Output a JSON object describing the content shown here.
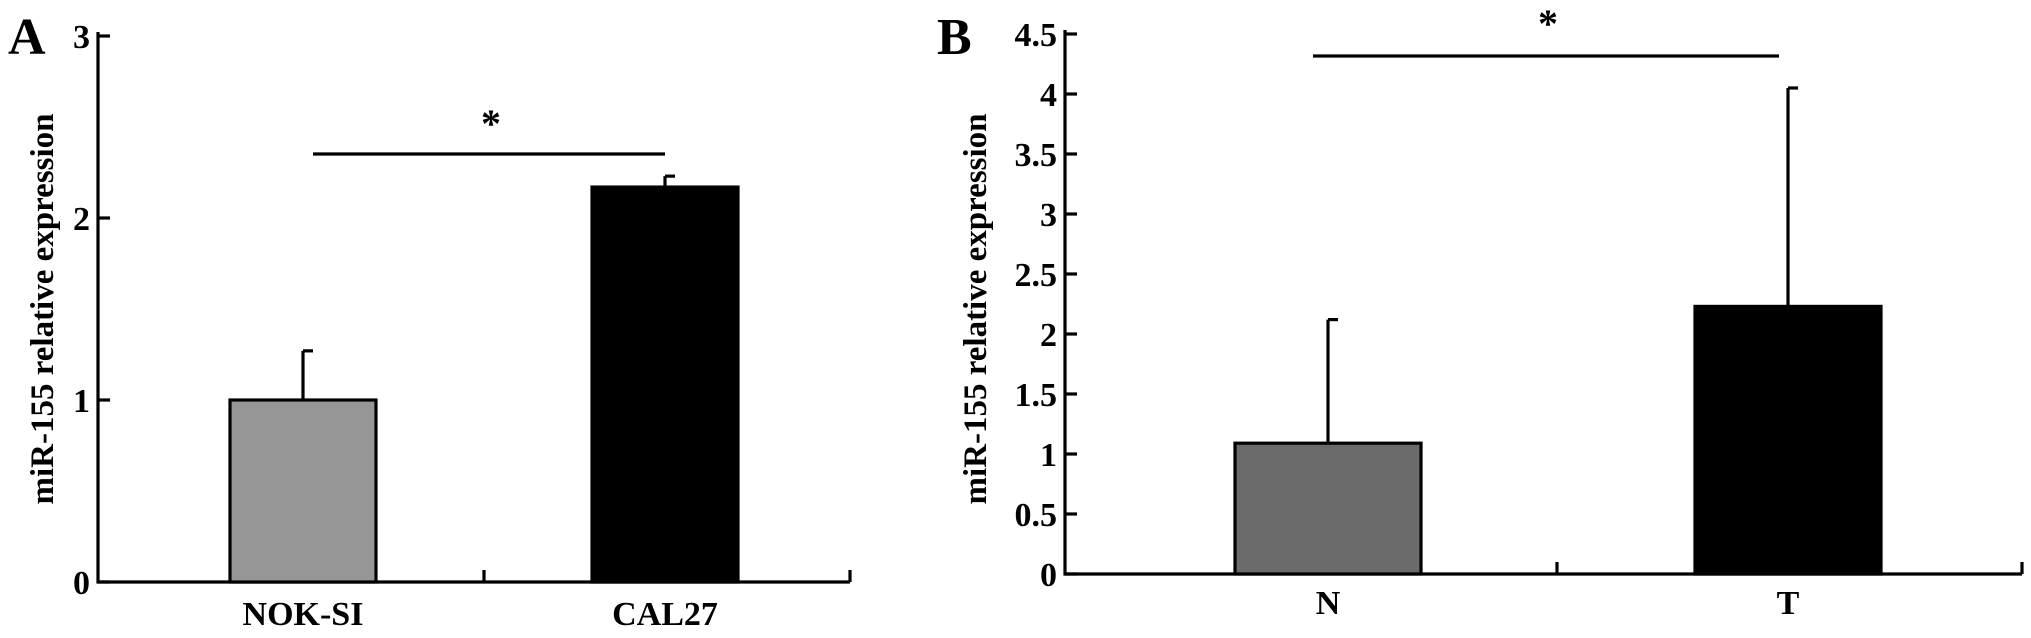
{
  "chart_data": [
    {
      "type": "bar",
      "panel": "A",
      "categories": [
        "NOK-SI",
        "CAL27"
      ],
      "values": [
        1.0,
        2.17
      ],
      "errors": [
        0.27,
        0.06
      ],
      "colors": [
        "#969696",
        "#000000"
      ],
      "ylabel": "miR-155 relative expression",
      "ylim": [
        0,
        3
      ],
      "yticks": [
        "0",
        "1",
        "2",
        "3"
      ],
      "significance": "*",
      "grid": false
    },
    {
      "type": "bar",
      "panel": "B",
      "categories": [
        "N",
        "T"
      ],
      "values": [
        1.09,
        2.23
      ],
      "errors": [
        1.03,
        1.82
      ],
      "colors": [
        "#6b6b6b",
        "#000000"
      ],
      "ylabel": "miR-155 relative expression",
      "ylim": [
        0,
        4.5
      ],
      "yticks": [
        "0",
        "0.5",
        "1",
        "1.5",
        "2",
        "2.5",
        "3",
        "3.5",
        "4",
        "4.5"
      ],
      "significance": "*",
      "grid": false
    }
  ]
}
